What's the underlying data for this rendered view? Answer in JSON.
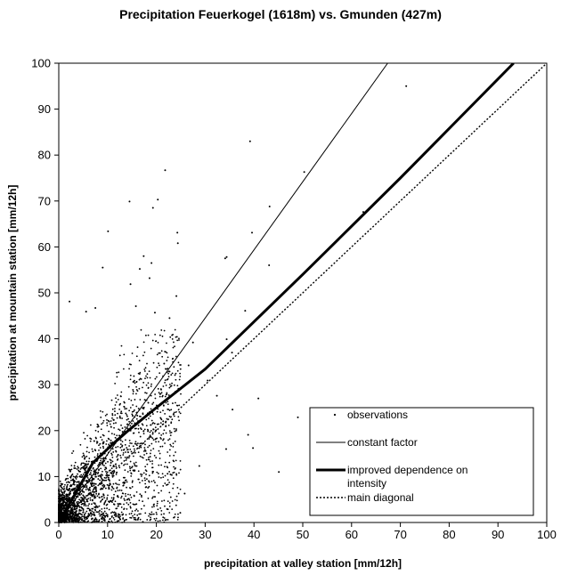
{
  "chart_data": {
    "type": "scatter",
    "title": "Precipitation Feuerkogel (1618m) vs. Gmunden (427m)",
    "xlabel": "precipitation at valley station [mm/12h]",
    "ylabel": "precipitation at mountain station [mm/12h]",
    "xlim": [
      0,
      100
    ],
    "ylim": [
      0,
      100
    ],
    "xticks": [
      "0",
      "10",
      "20",
      "30",
      "40",
      "50",
      "60",
      "70",
      "80",
      "90",
      "100"
    ],
    "yticks": [
      "0",
      "10",
      "20",
      "30",
      "40",
      "50",
      "60",
      "70",
      "80",
      "90",
      "100"
    ],
    "grid": false,
    "legend_position": "bottom-right",
    "series": [
      {
        "name": "observations",
        "style": "points",
        "points": [
          [
            71.2,
            95
          ],
          [
            39.2,
            83
          ],
          [
            21.8,
            76.7
          ],
          [
            20.3,
            70.3
          ],
          [
            19.3,
            68.5
          ],
          [
            14.5,
            69.9
          ],
          [
            24.3,
            63.1
          ],
          [
            10.1,
            63.4
          ],
          [
            39.6,
            63.1
          ],
          [
            24.4,
            60.8
          ],
          [
            17.4,
            58.0
          ],
          [
            9.0,
            55.5
          ],
          [
            34.1,
            57.5
          ],
          [
            34.4,
            57.8
          ],
          [
            19.0,
            56.5
          ],
          [
            16.6,
            55.2
          ],
          [
            18.6,
            53.2
          ],
          [
            43.1,
            56.0
          ],
          [
            43.2,
            68.8
          ],
          [
            50.3,
            76.3
          ],
          [
            62.4,
            67.6
          ],
          [
            76.6,
            82.0
          ],
          [
            2.2,
            48.1
          ],
          [
            14.7,
            51.9
          ],
          [
            15.8,
            47.1
          ],
          [
            24.1,
            49.3
          ],
          [
            19.7,
            45.7
          ],
          [
            38.2,
            46.1
          ],
          [
            22.7,
            44.5
          ],
          [
            5.6,
            45.9
          ],
          [
            7.5,
            46.7
          ],
          [
            34.4,
            39.9
          ],
          [
            35.5,
            37.0
          ],
          [
            40.9,
            27.0
          ],
          [
            45.1,
            11.0
          ],
          [
            49.0,
            22.9
          ],
          [
            34.3,
            16.0
          ],
          [
            28.8,
            12.3
          ],
          [
            25.8,
            6.3
          ],
          [
            22.3,
            10.6
          ],
          [
            24.9,
            2.1
          ],
          [
            38.8,
            19.1
          ],
          [
            39.8,
            16.2
          ],
          [
            32.4,
            27.6
          ],
          [
            30.5,
            30.9
          ],
          [
            35.6,
            24.6
          ],
          [
            27.5,
            39.2
          ],
          [
            26.6,
            34.2
          ],
          [
            21.6,
            34.6
          ],
          [
            16.2,
            0.6
          ],
          [
            19.7,
            5.6
          ],
          [
            11.3,
            4.0
          ],
          [
            13.8,
            9.2
          ]
        ],
        "cluster": {
          "count": 2600,
          "x_range": [
            0,
            25
          ],
          "y_range": [
            0,
            42
          ],
          "seed": 12345
        },
        "color": "#000000"
      },
      {
        "name": "constant factor",
        "style": "thin-line",
        "points": [
          [
            0,
            0
          ],
          [
            67.4,
            100
          ]
        ],
        "color": "#000000"
      },
      {
        "name": "improved dependence on intensity",
        "style": "thick-line",
        "points": [
          [
            0,
            0
          ],
          [
            7,
            13
          ],
          [
            11,
            17
          ],
          [
            14,
            19.8
          ],
          [
            20,
            25
          ],
          [
            30,
            33.4
          ],
          [
            50,
            54
          ],
          [
            70,
            75
          ],
          [
            93.2,
            100
          ]
        ],
        "color": "#000000"
      },
      {
        "name": "main diagonal",
        "style": "dotted-line",
        "points": [
          [
            0,
            0
          ],
          [
            100,
            100
          ]
        ],
        "color": "#000000"
      }
    ]
  }
}
